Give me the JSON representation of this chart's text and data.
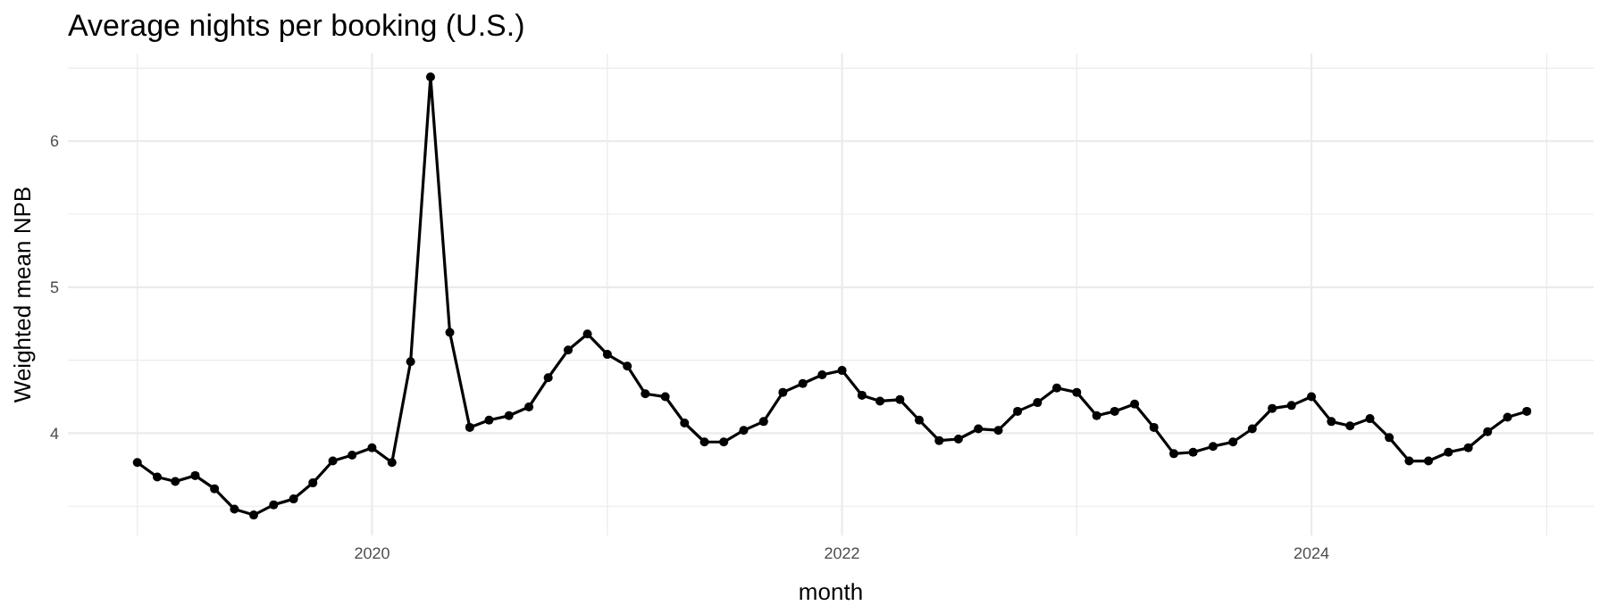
{
  "chart_data": {
    "type": "line",
    "title": "Average nights per booking (U.S.)",
    "xlabel": "month",
    "ylabel": "Weighted mean NPB",
    "marker": "circle",
    "grid": true,
    "color": "#000000",
    "x": [
      "2019-01",
      "2019-02",
      "2019-03",
      "2019-04",
      "2019-05",
      "2019-06",
      "2019-07",
      "2019-08",
      "2019-09",
      "2019-10",
      "2019-11",
      "2019-12",
      "2020-01",
      "2020-02",
      "2020-03",
      "2020-04",
      "2020-05",
      "2020-06",
      "2020-07",
      "2020-08",
      "2020-09",
      "2020-10",
      "2020-11",
      "2020-12",
      "2021-01",
      "2021-02",
      "2021-03",
      "2021-04",
      "2021-05",
      "2021-06",
      "2021-07",
      "2021-08",
      "2021-09",
      "2021-10",
      "2021-11",
      "2021-12",
      "2022-01",
      "2022-02",
      "2022-03",
      "2022-04",
      "2022-05",
      "2022-06",
      "2022-07",
      "2022-08",
      "2022-09",
      "2022-10",
      "2022-11",
      "2022-12",
      "2023-01",
      "2023-02",
      "2023-03",
      "2023-04",
      "2023-05",
      "2023-06",
      "2023-07",
      "2023-08",
      "2023-09",
      "2023-10",
      "2023-11",
      "2023-12",
      "2024-01",
      "2024-02",
      "2024-03",
      "2024-04",
      "2024-05",
      "2024-06",
      "2024-07",
      "2024-08",
      "2024-09",
      "2024-10",
      "2024-11",
      "2024-12"
    ],
    "values": [
      3.8,
      3.7,
      3.67,
      3.71,
      3.62,
      3.48,
      3.44,
      3.51,
      3.55,
      3.66,
      3.81,
      3.85,
      3.9,
      3.8,
      4.49,
      6.44,
      4.69,
      4.04,
      4.09,
      4.12,
      4.18,
      4.38,
      4.57,
      4.68,
      4.54,
      4.46,
      4.27,
      4.25,
      4.07,
      3.94,
      3.94,
      4.02,
      4.08,
      4.28,
      4.34,
      4.4,
      4.43,
      4.26,
      4.22,
      4.23,
      4.09,
      3.95,
      3.96,
      4.03,
      4.02,
      4.15,
      4.21,
      4.31,
      4.28,
      4.12,
      4.15,
      4.2,
      4.04,
      3.86,
      3.87,
      3.91,
      3.94,
      4.03,
      4.17,
      4.19,
      4.25,
      4.08,
      4.05,
      4.1,
      3.97,
      3.81,
      3.81,
      3.87,
      3.9,
      4.01,
      4.11,
      4.15
    ],
    "xlim": [
      "2018-09-15",
      "2025-03-15"
    ],
    "xticks": [
      {
        "value": "2019-01-01",
        "label": null
      },
      {
        "value": "2020-01-01",
        "label": "2020"
      },
      {
        "value": "2021-01-01",
        "label": null
      },
      {
        "value": "2022-01-01",
        "label": "2022"
      },
      {
        "value": "2023-01-01",
        "label": null
      },
      {
        "value": "2024-01-01",
        "label": "2024"
      },
      {
        "value": "2025-01-01",
        "label": null
      }
    ],
    "ylim": [
      3.3,
      6.6
    ],
    "yticks": [
      {
        "value": 3.5,
        "label": null
      },
      4,
      {
        "value": 4.5,
        "label": null
      },
      5,
      {
        "value": 5.5,
        "label": null
      },
      6,
      {
        "value": 6.5,
        "label": null
      }
    ]
  }
}
